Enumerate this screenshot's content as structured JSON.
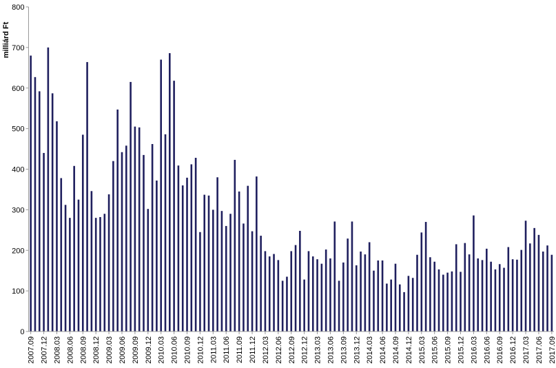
{
  "chart_data": {
    "type": "bar",
    "ylabel": "milliárd Ft",
    "xlabel": "",
    "title": "",
    "ylim": [
      0,
      800
    ],
    "yticks": [
      0,
      100,
      200,
      300,
      400,
      500,
      600,
      700,
      800
    ],
    "grid": false,
    "legend": "none",
    "bar_color": "#1f1f5e",
    "categories": [
      "2007.09",
      "2007.10",
      "2007.11",
      "2007.12",
      "2008.01",
      "2008.02",
      "2008.03",
      "2008.04",
      "2008.05",
      "2008.06",
      "2008.07",
      "2008.08",
      "2008.09",
      "2008.10",
      "2008.11",
      "2008.12",
      "2009.01",
      "2009.02",
      "2009.03",
      "2009.04",
      "2009.05",
      "2009.06",
      "2009.07",
      "2009.08",
      "2009.09",
      "2009.10",
      "2009.11",
      "2009.12",
      "2010.01",
      "2010.02",
      "2010.03",
      "2010.04",
      "2010.05",
      "2010.06",
      "2010.07",
      "2010.08",
      "2010.09",
      "2010.10",
      "2010.11",
      "2010.12",
      "2011.01",
      "2011.02",
      "2011.03",
      "2011.04",
      "2011.05",
      "2011.06",
      "2011.07",
      "2011.08",
      "2011.09",
      "2011.10",
      "2011.11",
      "2011.12",
      "2012.01",
      "2012.02",
      "2012.03",
      "2012.04",
      "2012.05",
      "2012.06",
      "2012.07",
      "2012.08",
      "2012.09",
      "2012.10",
      "2012.11",
      "2012.12",
      "2013.01",
      "2013.02",
      "2013.03",
      "2013.04",
      "2013.05",
      "2013.06",
      "2013.07",
      "2013.08",
      "2013.09",
      "2013.10",
      "2013.11",
      "2013.12",
      "2014.01",
      "2014.02",
      "2014.03",
      "2014.04",
      "2014.05",
      "2014.06",
      "2014.07",
      "2014.08",
      "2014.09",
      "2014.10",
      "2014.11",
      "2014.12",
      "2015.01",
      "2015.02",
      "2015.03",
      "2015.04",
      "2015.05",
      "2015.06",
      "2015.07",
      "2015.08",
      "2015.09",
      "2015.10",
      "2015.11",
      "2015.12",
      "2016.01",
      "2016.02",
      "2016.03",
      "2016.04",
      "2016.05",
      "2016.06",
      "2016.07",
      "2016.08",
      "2016.09",
      "2016.10",
      "2016.11",
      "2016.12",
      "2017.01",
      "2017.02",
      "2017.03",
      "2017.04",
      "2017.05",
      "2017.06",
      "2017.07",
      "2017.08",
      "2017.09"
    ],
    "tick_labels": [
      "2007.09",
      "2007.12",
      "2008.03",
      "2008.06",
      "2008.09",
      "2008.12",
      "2009.03",
      "2009.06",
      "2009.09",
      "2009.12",
      "2010.03",
      "2010.06",
      "2010.09",
      "2010.12",
      "2011.03",
      "2011.06",
      "2011.09",
      "2011.12",
      "2012.03",
      "2012.06",
      "2012.09",
      "2012.12",
      "2013.03",
      "2013.06",
      "2013.09",
      "2013.12",
      "2014.03",
      "2014.06",
      "2014.09",
      "2014.12",
      "2015.03",
      "2015.06",
      "2015.09",
      "2015.12",
      "2016.03",
      "2016.06",
      "2016.09",
      "2016.12",
      "2017.03",
      "2017.06",
      "2017.09"
    ],
    "values": [
      680,
      627,
      592,
      440,
      700,
      587,
      518,
      378,
      312,
      280,
      408,
      325,
      485,
      664,
      346,
      280,
      282,
      290,
      338,
      420,
      547,
      442,
      458,
      615,
      505,
      503,
      435,
      302,
      462,
      372,
      670,
      486,
      686,
      618,
      409,
      360,
      379,
      412,
      428,
      245,
      337,
      335,
      300,
      380,
      297,
      260,
      290,
      423,
      345,
      266,
      359,
      247,
      382,
      236,
      198,
      185,
      191,
      176,
      125,
      135,
      198,
      213,
      248,
      128,
      198,
      185,
      178,
      167,
      202,
      180,
      271,
      125,
      170,
      229,
      271,
      163,
      197,
      190,
      220,
      150,
      175,
      175,
      118,
      128,
      167,
      116,
      97,
      137,
      132,
      189,
      244,
      270,
      183,
      172,
      153,
      140,
      145,
      148,
      215,
      147,
      218,
      190,
      286,
      180,
      176,
      204,
      172,
      153,
      166,
      157,
      208,
      178,
      177,
      201,
      273,
      217,
      255,
      238,
      197,
      212,
      189
    ]
  }
}
